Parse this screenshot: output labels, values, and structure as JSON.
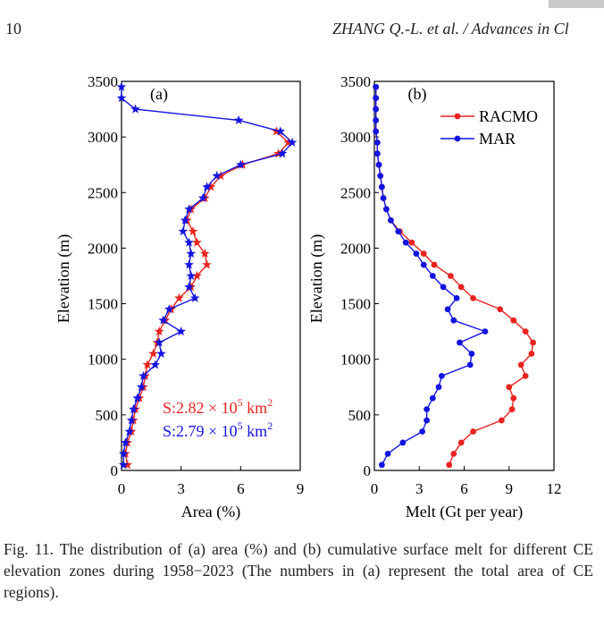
{
  "header": {
    "page_number": "10",
    "running_head": "ZHANG Q.-L. et al. / Advances in Cl"
  },
  "caption": "Fig. 11. The distribution of (a) area (%) and (b) cumulative surface melt for different CE elevation zones during 1958−2023 (The numbers in (a) represent the total area of CE regions).",
  "chart_data": [
    {
      "type": "line",
      "panel_label": "(a)",
      "xlabel": "Area (%)",
      "ylabel": "Elevation (m)",
      "xlim": [
        0,
        9
      ],
      "ylim": [
        0,
        3500
      ],
      "xticks": [
        0,
        3,
        6,
        9
      ],
      "yticks": [
        0,
        500,
        1000,
        1500,
        2000,
        2500,
        3000,
        3500
      ],
      "marker": "star",
      "series": [
        {
          "color": "#e8231f",
          "points": [
            [
              0.3,
              50
            ],
            [
              0.2,
              150
            ],
            [
              0.3,
              250
            ],
            [
              0.5,
              350
            ],
            [
              0.6,
              450
            ],
            [
              0.7,
              550
            ],
            [
              0.9,
              650
            ],
            [
              1.1,
              750
            ],
            [
              1.2,
              850
            ],
            [
              1.3,
              950
            ],
            [
              1.6,
              1050
            ],
            [
              1.8,
              1150
            ],
            [
              1.9,
              1250
            ],
            [
              2.2,
              1350
            ],
            [
              2.5,
              1450
            ],
            [
              2.9,
              1550
            ],
            [
              3.5,
              1650
            ],
            [
              3.8,
              1750
            ],
            [
              4.3,
              1850
            ],
            [
              4.2,
              1950
            ],
            [
              3.8,
              2050
            ],
            [
              3.6,
              2150
            ],
            [
              3.3,
              2250
            ],
            [
              3.5,
              2350
            ],
            [
              4.2,
              2450
            ],
            [
              4.5,
              2550
            ],
            [
              5.0,
              2650
            ],
            [
              6.1,
              2750
            ],
            [
              7.9,
              2850
            ],
            [
              8.4,
              2950
            ],
            [
              7.8,
              3050
            ]
          ]
        },
        {
          "color": "#1414e0",
          "points": [
            [
              0.1,
              50
            ],
            [
              0.1,
              150
            ],
            [
              0.2,
              250
            ],
            [
              0.4,
              350
            ],
            [
              0.5,
              450
            ],
            [
              0.6,
              550
            ],
            [
              0.8,
              650
            ],
            [
              1.0,
              750
            ],
            [
              1.1,
              850
            ],
            [
              1.7,
              950
            ],
            [
              2.0,
              1050
            ],
            [
              1.9,
              1150
            ],
            [
              3.0,
              1250
            ],
            [
              2.1,
              1350
            ],
            [
              2.4,
              1450
            ],
            [
              3.7,
              1550
            ],
            [
              3.4,
              1650
            ],
            [
              3.5,
              1750
            ],
            [
              3.4,
              1850
            ],
            [
              3.5,
              1950
            ],
            [
              3.4,
              2050
            ],
            [
              3.1,
              2150
            ],
            [
              3.2,
              2250
            ],
            [
              3.4,
              2350
            ],
            [
              4.1,
              2450
            ],
            [
              4.3,
              2550
            ],
            [
              4.8,
              2650
            ],
            [
              6.0,
              2750
            ],
            [
              8.1,
              2850
            ],
            [
              8.6,
              2950
            ],
            [
              8.0,
              3050
            ],
            [
              5.9,
              3150
            ],
            [
              0.7,
              3250
            ],
            [
              0.0,
              3350
            ],
            [
              0.0,
              3450
            ]
          ]
        }
      ],
      "annotations": [
        {
          "text_prefix": "S:2.82 × 10",
          "sup": "5",
          "text_suffix": " km",
          "sup2": "2",
          "color": "#e8231f"
        },
        {
          "text_prefix": "S:2.79 × 10",
          "sup": "5",
          "text_suffix": " km",
          "sup2": "2",
          "color": "#1414e0"
        }
      ]
    },
    {
      "type": "line",
      "panel_label": "(b)",
      "xlabel": "Melt (Gt per year)",
      "ylabel": "Elevation (m)",
      "xlim": [
        0,
        12
      ],
      "ylim": [
        0,
        3500
      ],
      "xticks": [
        0,
        3,
        6,
        9,
        12
      ],
      "yticks": [
        0,
        500,
        1000,
        1500,
        2000,
        2500,
        3000,
        3500
      ],
      "marker": "circle",
      "legend_position": "top-right",
      "series": [
        {
          "name": "RACMO",
          "color": "#e8231f",
          "points": [
            [
              5.0,
              50
            ],
            [
              5.3,
              150
            ],
            [
              5.8,
              250
            ],
            [
              6.6,
              350
            ],
            [
              8.5,
              450
            ],
            [
              9.2,
              550
            ],
            [
              9.3,
              650
            ],
            [
              9.0,
              750
            ],
            [
              10.1,
              850
            ],
            [
              9.8,
              950
            ],
            [
              10.5,
              1050
            ],
            [
              10.6,
              1150
            ],
            [
              10.1,
              1250
            ],
            [
              9.3,
              1350
            ],
            [
              8.4,
              1450
            ],
            [
              6.6,
              1550
            ],
            [
              5.8,
              1650
            ],
            [
              5.1,
              1750
            ],
            [
              4.0,
              1850
            ],
            [
              3.3,
              1950
            ],
            [
              2.5,
              2050
            ],
            [
              1.7,
              2150
            ],
            [
              1.1,
              2250
            ],
            [
              0.8,
              2350
            ],
            [
              0.6,
              2450
            ],
            [
              0.5,
              2550
            ],
            [
              0.4,
              2650
            ],
            [
              0.3,
              2750
            ],
            [
              0.2,
              2850
            ],
            [
              0.2,
              2950
            ],
            [
              0.1,
              3050
            ],
            [
              0.1,
              3150
            ],
            [
              0.1,
              3250
            ],
            [
              0.1,
              3350
            ],
            [
              0.1,
              3450
            ]
          ]
        },
        {
          "name": "MAR",
          "color": "#1414e0",
          "points": [
            [
              0.5,
              50
            ],
            [
              0.9,
              150
            ],
            [
              1.9,
              250
            ],
            [
              3.2,
              350
            ],
            [
              3.5,
              450
            ],
            [
              3.5,
              550
            ],
            [
              3.9,
              650
            ],
            [
              4.3,
              750
            ],
            [
              4.5,
              850
            ],
            [
              6.4,
              950
            ],
            [
              6.5,
              1050
            ],
            [
              5.7,
              1150
            ],
            [
              7.4,
              1250
            ],
            [
              5.3,
              1350
            ],
            [
              4.9,
              1450
            ],
            [
              5.5,
              1550
            ],
            [
              4.6,
              1650
            ],
            [
              3.9,
              1750
            ],
            [
              3.3,
              1850
            ],
            [
              2.8,
              1950
            ],
            [
              2.1,
              2050
            ],
            [
              1.6,
              2150
            ],
            [
              1.1,
              2250
            ],
            [
              0.8,
              2350
            ],
            [
              0.6,
              2450
            ],
            [
              0.5,
              2550
            ],
            [
              0.4,
              2650
            ],
            [
              0.3,
              2750
            ],
            [
              0.2,
              2850
            ],
            [
              0.2,
              2950
            ],
            [
              0.1,
              3050
            ],
            [
              0.1,
              3150
            ],
            [
              0.1,
              3250
            ],
            [
              0.1,
              3350
            ],
            [
              0.1,
              3450
            ]
          ]
        }
      ]
    }
  ]
}
